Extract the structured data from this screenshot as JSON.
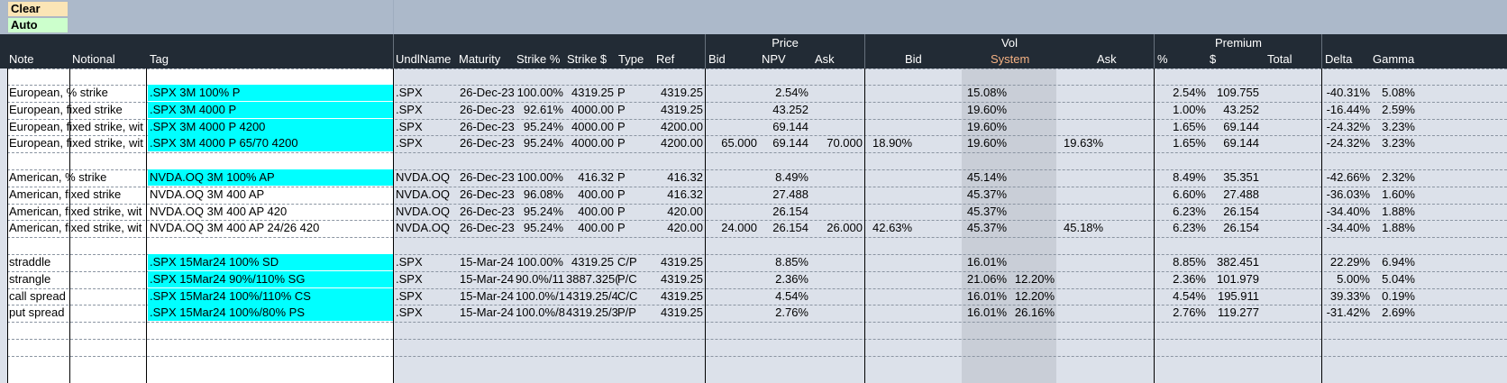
{
  "controls": {
    "clear_label": "Clear",
    "auto_label": "Auto"
  },
  "header": {
    "groups": {
      "price": "Price",
      "vol": "Vol",
      "premium": "Premium"
    },
    "columns": {
      "note": "Note",
      "notional": "Notional",
      "tag": "Tag",
      "undl": "UndlName",
      "maturity": "Maturity",
      "strike_pct": "Strike %",
      "strike_usd": "Strike $",
      "type": "Type",
      "ref": "Ref",
      "price_bid": "Bid",
      "price_npv": "NPV",
      "price_ask": "Ask",
      "vol_bid": "Bid",
      "vol_system": "System",
      "vol_ask": "Ask",
      "prem_pct": "%",
      "prem_usd": "$",
      "prem_total": "Total",
      "delta": "Delta",
      "gamma": "Gamma"
    }
  },
  "rows": [
    {
      "note": "European, % strike",
      "tag": ".SPX 3M 100% P",
      "undl": ".SPX",
      "maturity": "26-Dec-23",
      "strike_pct": "100.00%",
      "strike_usd": "4319.25",
      "type": "P",
      "ref": "4319.25",
      "pbid": "",
      "npv": "2.54%",
      "pask": "",
      "vbid": "",
      "vsys": "15.08%",
      "vsys2": "",
      "vask": "",
      "ppct": "2.54%",
      "pusd": "109.755",
      "delta": "-40.31%",
      "gamma": "5.08%",
      "highlight": true
    },
    {
      "note": "European, fixed strike",
      "tag": ".SPX 3M 4000 P",
      "undl": ".SPX",
      "maturity": "26-Dec-23",
      "strike_pct": "92.61%",
      "strike_usd": "4000.00",
      "type": "P",
      "ref": "4319.25",
      "pbid": "",
      "npv": "43.252",
      "pask": "",
      "vbid": "",
      "vsys": "19.60%",
      "vsys2": "",
      "vask": "",
      "ppct": "1.00%",
      "pusd": "43.252",
      "delta": "-16.44%",
      "gamma": "2.59%",
      "highlight": true
    },
    {
      "note": "European, fixed strike, wit",
      "tag": ".SPX 3M 4000 P 4200",
      "undl": ".SPX",
      "maturity": "26-Dec-23",
      "strike_pct": "95.24%",
      "strike_usd": "4000.00",
      "type": "P",
      "ref": "4200.00",
      "pbid": "",
      "npv": "69.144",
      "pask": "",
      "vbid": "",
      "vsys": "19.60%",
      "vsys2": "",
      "vask": "",
      "ppct": "1.65%",
      "pusd": "69.144",
      "delta": "-24.32%",
      "gamma": "3.23%",
      "highlight": true
    },
    {
      "note": "European, fixed strike, wit",
      "tag": ".SPX 3M 4000 P 65/70 4200",
      "undl": ".SPX",
      "maturity": "26-Dec-23",
      "strike_pct": "95.24%",
      "strike_usd": "4000.00",
      "type": "P",
      "ref": "4200.00",
      "pbid": "65.000",
      "npv": "69.144",
      "pask": "70.000",
      "vbid": "18.90%",
      "vsys": "19.60%",
      "vsys2": "",
      "vask": "19.63%",
      "ppct": "1.65%",
      "pusd": "69.144",
      "delta": "-24.32%",
      "gamma": "3.23%",
      "highlight": true
    },
    {
      "blank": true
    },
    {
      "note": "American, % strike",
      "tag": "NVDA.OQ 3M 100% AP",
      "undl": "NVDA.OQ",
      "maturity": "26-Dec-23",
      "strike_pct": "100.00%",
      "strike_usd": "416.32",
      "type": "P",
      "ref": "416.32",
      "pbid": "",
      "npv": "8.49%",
      "pask": "",
      "vbid": "",
      "vsys": "45.14%",
      "vsys2": "",
      "vask": "",
      "ppct": "8.49%",
      "pusd": "35.351",
      "delta": "-42.66%",
      "gamma": "2.32%",
      "highlight": true
    },
    {
      "note": "American, fixed strike",
      "tag": "NVDA.OQ 3M 400 AP",
      "undl": "NVDA.OQ",
      "maturity": "26-Dec-23",
      "strike_pct": "96.08%",
      "strike_usd": "400.00",
      "type": "P",
      "ref": "416.32",
      "pbid": "",
      "npv": "27.488",
      "pask": "",
      "vbid": "",
      "vsys": "45.37%",
      "vsys2": "",
      "vask": "",
      "ppct": "6.60%",
      "pusd": "27.488",
      "delta": "-36.03%",
      "gamma": "1.60%",
      "highlight": false
    },
    {
      "note": "American, fixed strike, wit",
      "tag": "NVDA.OQ 3M 400 AP 420",
      "undl": "NVDA.OQ",
      "maturity": "26-Dec-23",
      "strike_pct": "95.24%",
      "strike_usd": "400.00",
      "type": "P",
      "ref": "420.00",
      "pbid": "",
      "npv": "26.154",
      "pask": "",
      "vbid": "",
      "vsys": "45.37%",
      "vsys2": "",
      "vask": "",
      "ppct": "6.23%",
      "pusd": "26.154",
      "delta": "-34.40%",
      "gamma": "1.88%",
      "highlight": false
    },
    {
      "note": "American, fixed strike, wit",
      "tag": "NVDA.OQ 3M 400 AP 24/26 420",
      "undl": "NVDA.OQ",
      "maturity": "26-Dec-23",
      "strike_pct": "95.24%",
      "strike_usd": "400.00",
      "type": "P",
      "ref": "420.00",
      "pbid": "24.000",
      "npv": "26.154",
      "pask": "26.000",
      "vbid": "42.63%",
      "vsys": "45.37%",
      "vsys2": "",
      "vask": "45.18%",
      "ppct": "6.23%",
      "pusd": "26.154",
      "delta": "-34.40%",
      "gamma": "1.88%",
      "highlight": false
    },
    {
      "blank": true
    },
    {
      "note": "straddle",
      "tag": ".SPX 15Mar24 100% SD",
      "undl": ".SPX",
      "maturity": "15-Mar-24",
      "strike_pct": "100.00%",
      "strike_usd": "4319.25",
      "type": "C/P",
      "ref": "4319.25",
      "pbid": "",
      "npv": "8.85%",
      "pask": "",
      "vbid": "",
      "vsys": "16.01%",
      "vsys2": "",
      "vask": "",
      "ppct": "8.85%",
      "pusd": "382.451",
      "delta": "22.29%",
      "gamma": "6.94%",
      "highlight": true
    },
    {
      "note": "strangle",
      "tag": ".SPX 15Mar24 90%/110% SG",
      "undl": ".SPX",
      "maturity": "15-Mar-24",
      "strike_pct": "90.0%/11",
      "strike_usd": "3887.325(",
      "type": "P/C",
      "ref": "4319.25",
      "pbid": "",
      "npv": "2.36%",
      "pask": "",
      "vbid": "",
      "vsys": "21.06%",
      "vsys2": "12.20%",
      "vask": "",
      "ppct": "2.36%",
      "pusd": "101.979",
      "delta": "5.00%",
      "gamma": "5.04%",
      "highlight": true
    },
    {
      "note": "call spread",
      "tag": ".SPX 15Mar24 100%/110% CS",
      "undl": ".SPX",
      "maturity": "15-Mar-24",
      "strike_pct": "100.0%/1",
      "strike_usd": "4319.25/4",
      "type": "C/C",
      "ref": "4319.25",
      "pbid": "",
      "npv": "4.54%",
      "pask": "",
      "vbid": "",
      "vsys": "16.01%",
      "vsys2": "12.20%",
      "vask": "",
      "ppct": "4.54%",
      "pusd": "195.911",
      "delta": "39.33%",
      "gamma": "0.19%",
      "highlight": true
    },
    {
      "note": "put spread",
      "tag": ".SPX 15Mar24 100%/80% PS",
      "undl": ".SPX",
      "maturity": "15-Mar-24",
      "strike_pct": "100.0%/8",
      "strike_usd": "4319.25/3",
      "type": "P/P",
      "ref": "4319.25",
      "pbid": "",
      "npv": "2.76%",
      "pask": "",
      "vbid": "",
      "vsys": "16.01%",
      "vsys2": "26.16%",
      "vask": "",
      "ppct": "2.76%",
      "pusd": "119.277",
      "delta": "-31.42%",
      "gamma": "2.69%",
      "highlight": true
    }
  ]
}
